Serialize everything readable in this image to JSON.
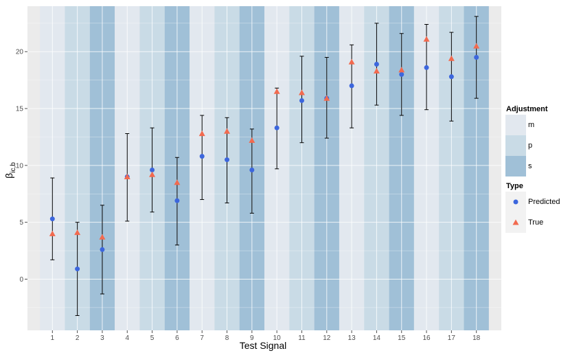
{
  "chart_data": {
    "type": "scatter",
    "title": "",
    "xlabel": "Test Signal",
    "ylabel_main": "β",
    "ylabel_sub": "ic,b",
    "x_categories": [
      "1",
      "2",
      "3",
      "4",
      "5",
      "6",
      "7",
      "8",
      "9",
      "10",
      "11",
      "12",
      "13",
      "14",
      "15",
      "16",
      "17",
      "18"
    ],
    "ylim": [
      -4.5,
      24
    ],
    "yticks": [
      0,
      5,
      10,
      15,
      20
    ],
    "grid": true,
    "adjustment": [
      "m",
      "p",
      "s",
      "m",
      "p",
      "s",
      "m",
      "p",
      "s",
      "m",
      "p",
      "s",
      "m",
      "p",
      "s",
      "m",
      "p",
      "s"
    ],
    "adjustment_colors": {
      "m": "#e2e8ef",
      "p": "#c9dbe6",
      "s": "#a0c0d7"
    },
    "legend_adjustment": {
      "title": "Adjustment",
      "entries": [
        {
          "key": "m",
          "label": "m"
        },
        {
          "key": "p",
          "label": "p"
        },
        {
          "key": "s",
          "label": "s"
        }
      ]
    },
    "legend_type": {
      "title": "Type",
      "entries": [
        {
          "key": "predicted",
          "label": "Predicted",
          "color": "#3c66dd",
          "shape": "circle"
        },
        {
          "key": "true",
          "label": "True",
          "color": "#f26a4f",
          "shape": "triangle"
        }
      ]
    },
    "predicted": {
      "name": "Predicted",
      "color": "#3c66dd",
      "values": [
        5.3,
        0.9,
        2.6,
        9.0,
        9.6,
        6.9,
        10.8,
        10.5,
        9.6,
        13.3,
        15.7,
        15.9,
        17.0,
        18.9,
        18.0,
        18.6,
        17.8,
        19.5
      ],
      "ci_low": [
        1.7,
        -3.2,
        -1.3,
        5.1,
        5.9,
        3.0,
        7.0,
        6.7,
        5.8,
        9.7,
        12.0,
        12.4,
        13.3,
        15.3,
        14.4,
        14.9,
        13.9,
        15.9
      ],
      "ci_high": [
        8.9,
        5.0,
        6.5,
        12.8,
        13.3,
        10.7,
        14.4,
        14.2,
        13.2,
        16.8,
        19.6,
        19.5,
        20.6,
        22.5,
        21.6,
        22.4,
        21.7,
        23.1
      ]
    },
    "true": {
      "name": "True",
      "color": "#f26a4f",
      "values": [
        4.0,
        4.1,
        3.7,
        9.0,
        9.2,
        8.5,
        12.8,
        13.0,
        12.2,
        16.5,
        16.4,
        15.9,
        19.1,
        18.3,
        18.4,
        21.1,
        19.4,
        20.5
      ]
    }
  }
}
